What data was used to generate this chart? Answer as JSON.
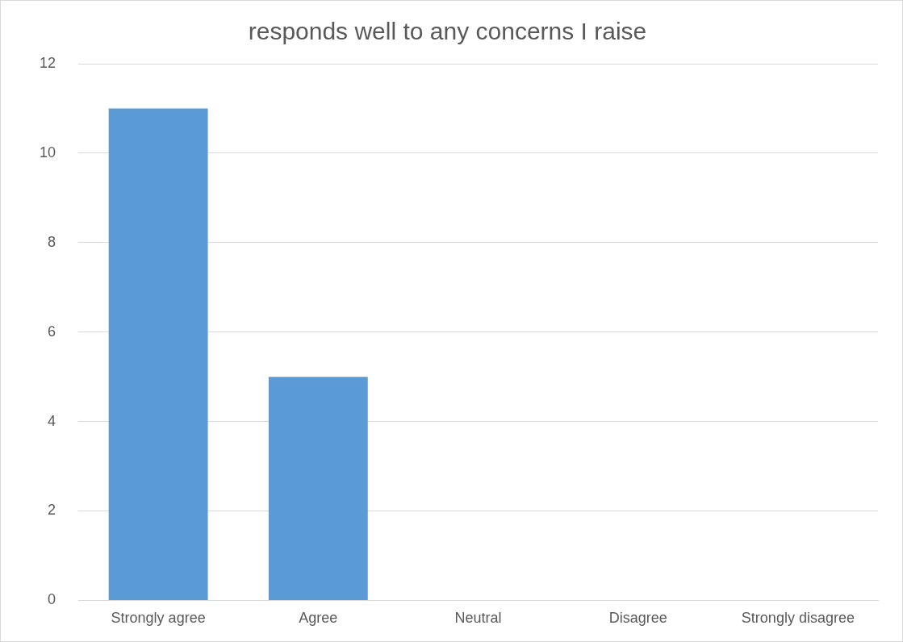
{
  "chart_data": {
    "type": "bar",
    "title": "responds well to any concerns I raise",
    "categories": [
      "Strongly agree",
      "Agree",
      "Neutral",
      "Disagree",
      "Strongly disagree"
    ],
    "values": [
      11,
      5,
      0,
      0,
      0
    ],
    "color": "#5b9bd5",
    "ylim": [
      0,
      12
    ],
    "yticks": [
      0,
      2,
      4,
      6,
      8,
      10,
      12
    ],
    "grid": "y",
    "legend": false
  }
}
